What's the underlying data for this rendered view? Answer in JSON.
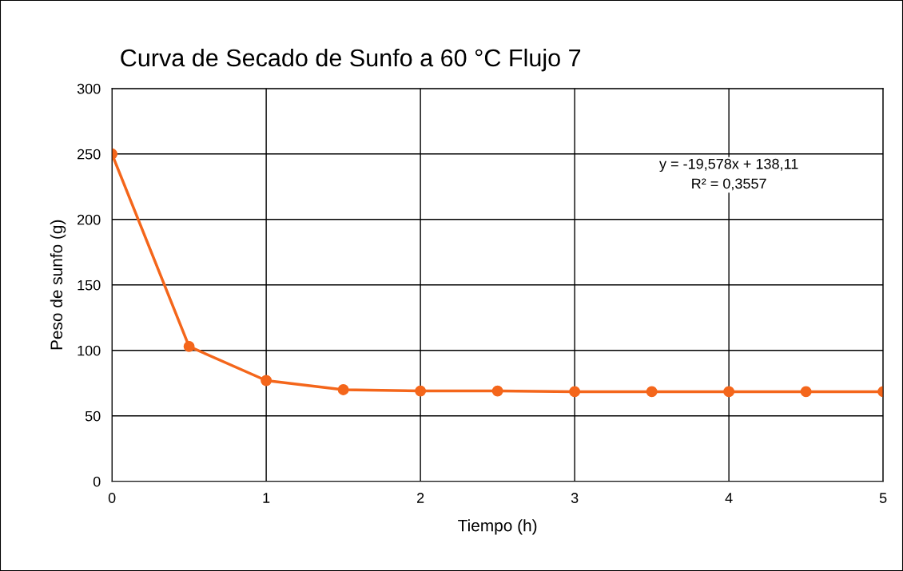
{
  "chart_data": {
    "type": "line",
    "title": "Curva de Secado de Sunfo a 60 °C Flujo 7",
    "xlabel": "Tiempo (h)",
    "ylabel": "Peso de sunfo (g)",
    "x": [
      0,
      0.5,
      1,
      1.5,
      2,
      2.5,
      3,
      3.5,
      4,
      4.5,
      5
    ],
    "series": [
      {
        "color": "#f4661b",
        "values": [
          250,
          103,
          77,
          70,
          69,
          69,
          68.5,
          68.5,
          68.5,
          68.5,
          68.5
        ]
      }
    ],
    "xlim": [
      0,
      5
    ],
    "xticks": [
      0,
      1,
      2,
      3,
      4,
      5
    ],
    "ylim": [
      0,
      300
    ],
    "yticks": [
      0,
      50,
      100,
      150,
      200,
      250,
      300
    ],
    "grid": true,
    "marker": "circle",
    "line_style": "solid",
    "annotations": [
      "y = -19,578x + 138,11\nR² = 0,3557"
    ]
  }
}
